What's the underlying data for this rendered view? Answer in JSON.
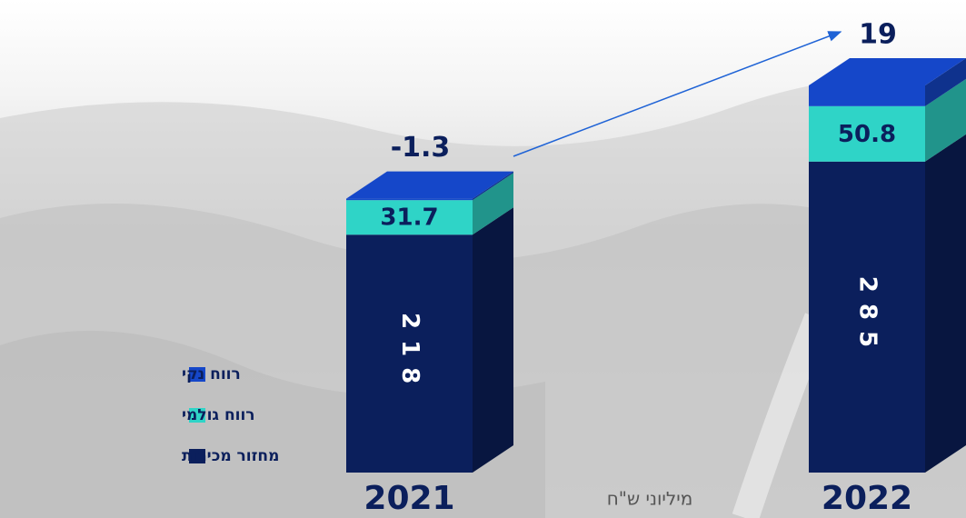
{
  "chart_data": {
    "type": "stacked-bar-3d",
    "categories": [
      "2021",
      "2022"
    ],
    "series": [
      {
        "name": "מחזור מכירות",
        "color": "#0b1f5c",
        "values": [
          218,
          285
        ]
      },
      {
        "name": "רווח גולמי",
        "color": "#2fd4c7",
        "values": [
          31.7,
          50.8
        ]
      },
      {
        "name": "רווח נקי",
        "color": "#1547c9",
        "values": [
          -1.3,
          19
        ]
      }
    ],
    "unit_label": "מיליוני ש\"ח"
  }
}
